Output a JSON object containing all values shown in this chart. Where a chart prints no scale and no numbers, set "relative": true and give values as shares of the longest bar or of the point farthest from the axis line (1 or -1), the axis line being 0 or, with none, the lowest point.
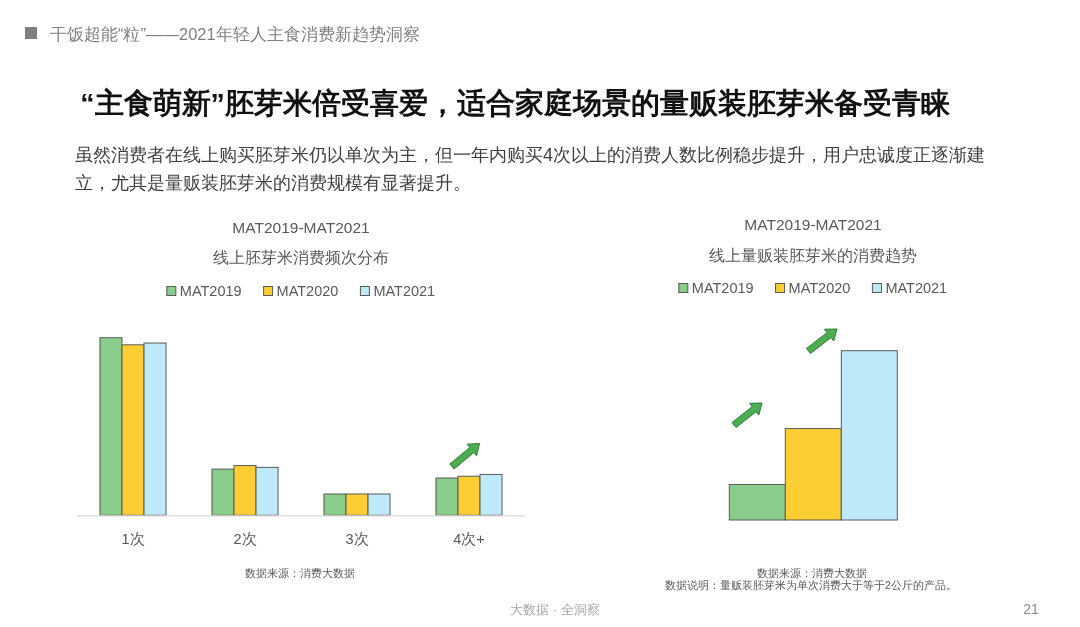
{
  "chart_data": [
    {
      "type": "bar",
      "title": "MAT2019-MAT2021",
      "subtitle": "线上胚芽米消费频次分布",
      "categories": [
        "1次",
        "2次",
        "3次",
        "4次+"
      ],
      "relative": true,
      "legend": "top",
      "series": [
        {
          "name": "MAT2019",
          "color": "#89cc8c",
          "values": [
            1,
            0.26,
            0.12,
            0.21
          ]
        },
        {
          "name": "MAT2020",
          "color": "#fcce33",
          "values": [
            0.96,
            0.28,
            0.12,
            0.22
          ]
        },
        {
          "name": "MAT2021",
          "color": "#bee9f8",
          "values": [
            0.97,
            0.27,
            0.12,
            0.23
          ]
        }
      ],
      "annotations": [
        "干饭超能“粒”——2021年轻人主食消费新趋势洞察",
        "“主食萌新”胚芽米倍受喜爱，适合家庭场景的量贩装胚芽米备受青睐",
        "虽然消费者在线上购买胚芽米仍以单次为主，但一年内购买4次以上的消费人数比例稳步提升，用户忠诚度正逐渐建立，尤其是量贩装胚芽米的消费规模有显著提升。",
        "数据来源：消费大数据",
        "大数据 · 全洞察",
        "21"
      ]
    },
    {
      "type": "bar",
      "title": "MAT2019-MAT2021",
      "subtitle": "线上量贩装胚芽米的消费趋势",
      "categories": [
        null
      ],
      "relative": true,
      "legend": "top",
      "series": [
        {
          "name": "MAT2019",
          "color": "#89cc8c",
          "values": [
            0.21
          ]
        },
        {
          "name": "MAT2020",
          "color": "#fcce33",
          "values": [
            0.54
          ]
        },
        {
          "name": "MAT2021",
          "color": "#bee9f8",
          "values": [
            1
          ]
        }
      ],
      "annotations": [
        "数据来源：消费大数据",
        "数据说明：量贩装胚芽米为单次消费大于等于2公斤的产品。"
      ]
    }
  ]
}
